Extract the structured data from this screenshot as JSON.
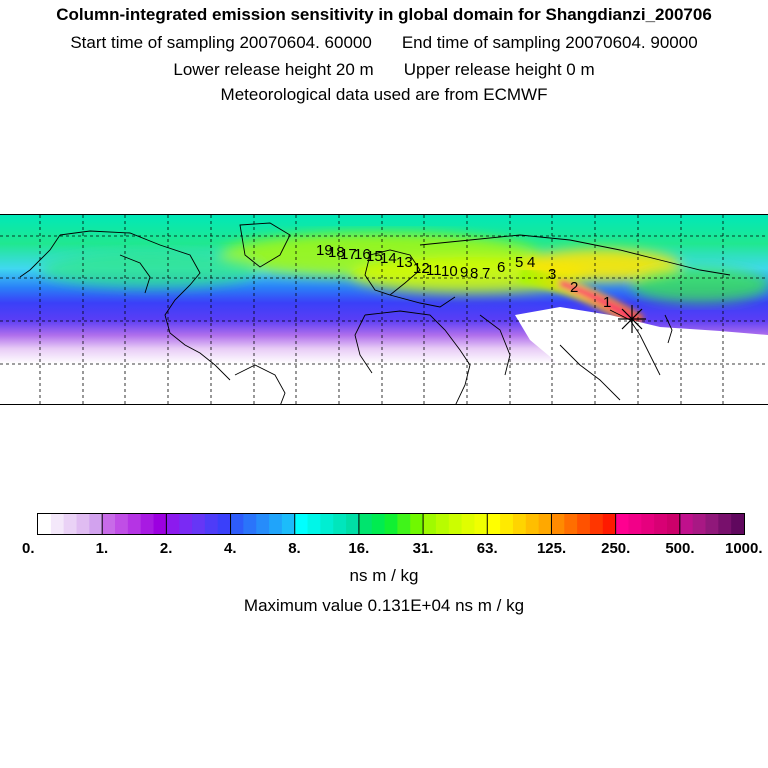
{
  "header": {
    "title": "Column-integrated emission sensitivity in global domain for Shangdianzi_200706",
    "start_sampling": "Start time of sampling 20070604. 60000",
    "end_sampling": "End time of sampling 20070604. 90000",
    "lower_release": "Lower release height   20 m",
    "upper_release": "Upper release height    0 m",
    "met_data": "Meteorological data used are from ECMWF"
  },
  "map": {
    "trajectory_labels": [
      "1",
      "2",
      "3",
      "4",
      "5",
      "6",
      "7",
      "8",
      "9",
      "10",
      "11",
      "12",
      "13",
      "14",
      "15",
      "16",
      "17",
      "18",
      "19"
    ],
    "receptor_marker": "asterisk"
  },
  "colorbar": {
    "ticks": [
      "0.",
      "1.",
      "2.",
      "4.",
      "8.",
      "16.",
      "31.",
      "63.",
      "125.",
      "250.",
      "500.",
      "1000."
    ],
    "colors": [
      "#ffffff",
      "#f4e8fa",
      "#ead2f6",
      "#e0bcf2",
      "#d2a2ee",
      "#c86be8",
      "#c04ee6",
      "#b534e4",
      "#a81ae2",
      "#9c00e0",
      "#8c1aee",
      "#7a2af4",
      "#6636f6",
      "#4e3cf8",
      "#3a40fa",
      "#2e5cfa",
      "#2a74fa",
      "#268cfa",
      "#20a4fa",
      "#1cbcfa",
      "#00ffff",
      "#00f6e8",
      "#00eed2",
      "#00e6bc",
      "#00dea6",
      "#00e46e",
      "#00ec50",
      "#10f032",
      "#40f41a",
      "#70f800",
      "#a0fa00",
      "#b8fc00",
      "#ccfe00",
      "#e0fe00",
      "#f0ff00",
      "#ffff00",
      "#ffea00",
      "#ffd400",
      "#ffbe00",
      "#ffa800",
      "#ff8a00",
      "#ff6e00",
      "#ff5200",
      "#ff3600",
      "#ff1a00",
      "#ff0090",
      "#f20088",
      "#e6007e",
      "#d80074",
      "#cc006a",
      "#c0108c",
      "#a81884",
      "#90187a",
      "#78106c",
      "#60085e"
    ],
    "unit": "ns m / kg",
    "max_value_text": "Maximum value  0.131E+04 ns m / kg",
    "max_value": 1310
  }
}
